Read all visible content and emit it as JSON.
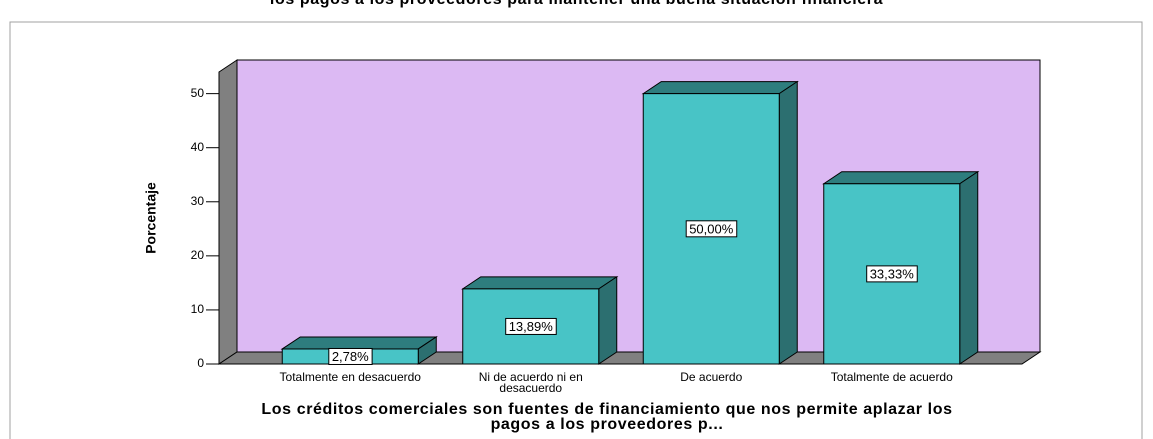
{
  "chart_data": {
    "type": "bar",
    "title": "los pagos a los proveedores para mantener una buena situación financiera",
    "x_label": "Los créditos comerciales son fuentes de financiamiento que nos permite aplazar los pagos a los proveedores p...",
    "y_label": "Porcentaje",
    "categories": [
      "Totalmente en desacuerdo",
      "Ni de acuerdo ni en desacuerdo",
      "De acuerdo",
      "Totalmente de acuerdo"
    ],
    "values": [
      2.78,
      13.89,
      50.0,
      33.33
    ],
    "value_labels": [
      "2,78%",
      "13,89%",
      "50,00%",
      "33,33%"
    ],
    "color": "#48c4c6",
    "ylim": [
      0,
      54
    ],
    "yticks": [
      0,
      10,
      20,
      30,
      40,
      50
    ]
  }
}
